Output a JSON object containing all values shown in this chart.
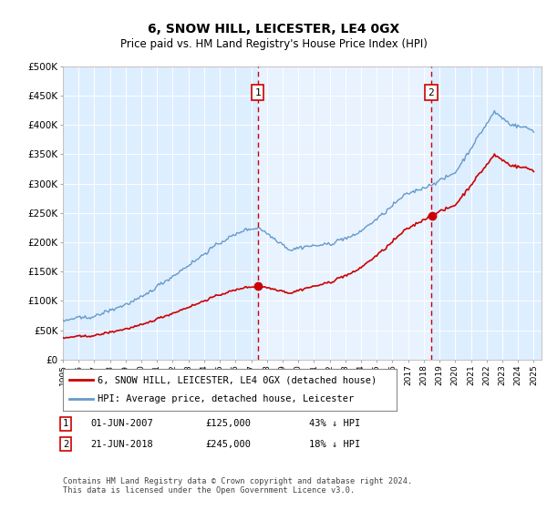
{
  "title": "6, SNOW HILL, LEICESTER, LE4 0GX",
  "subtitle": "Price paid vs. HM Land Registry's House Price Index (HPI)",
  "legend_line1": "6, SNOW HILL, LEICESTER, LE4 0GX (detached house)",
  "legend_line2": "HPI: Average price, detached house, Leicester",
  "annotation1_date": "01-JUN-2007",
  "annotation1_price": "£125,000",
  "annotation1_hpi": "43% ↓ HPI",
  "annotation1_year": 2007.42,
  "annotation1_value": 125000,
  "annotation2_date": "21-JUN-2018",
  "annotation2_price": "£245,000",
  "annotation2_hpi": "18% ↓ HPI",
  "annotation2_year": 2018.47,
  "annotation2_value": 245000,
  "footer": "Contains HM Land Registry data © Crown copyright and database right 2024.\nThis data is licensed under the Open Government Licence v3.0.",
  "red_color": "#cc0000",
  "blue_color": "#6699cc",
  "shade_color": "#ddeeff",
  "background_color": "#e8f0f8",
  "ylim": [
    0,
    500000
  ],
  "yticks": [
    0,
    50000,
    100000,
    150000,
    200000,
    250000,
    300000,
    350000,
    400000,
    450000,
    500000
  ],
  "ytick_labels": [
    "£0",
    "£50K",
    "£100K",
    "£150K",
    "£200K",
    "£250K",
    "£300K",
    "£350K",
    "£400K",
    "£450K",
    "£500K"
  ]
}
